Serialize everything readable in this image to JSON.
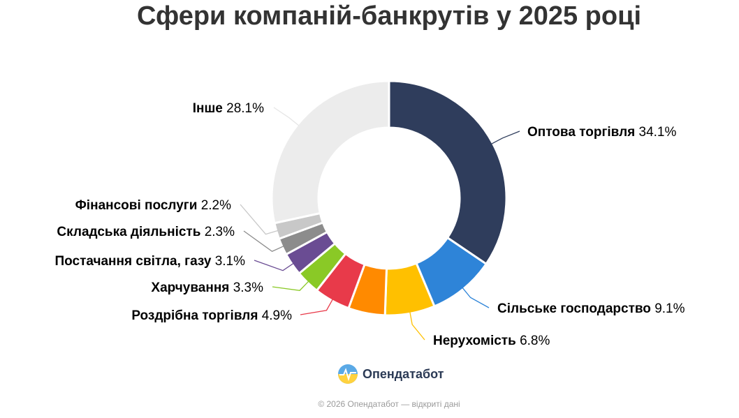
{
  "chart_data": {
    "type": "pie",
    "title": "Сфери компаній-банкрутів у 2025 році",
    "slices": [
      {
        "label": "Оптова торгівля",
        "value": 34.1,
        "value_text": "34.1%",
        "color": "#2f3d5c"
      },
      {
        "label": "Сільське господарство",
        "value": 9.1,
        "value_text": "9.1%",
        "color": "#2e84d8"
      },
      {
        "label": "Нерухомість",
        "value": 6.8,
        "value_text": "6.8%",
        "color": "#ffc000"
      },
      {
        "label": "",
        "value": 5.0,
        "value_text": "",
        "color": "#ff8a00"
      },
      {
        "label": "Роздрібна торгівля",
        "value": 4.9,
        "value_text": "4.9%",
        "color": "#e83a4a"
      },
      {
        "label": "Харчування",
        "value": 3.3,
        "value_text": "3.3%",
        "color": "#8ac926"
      },
      {
        "label": "Постачання світла, газу",
        "value": 3.1,
        "value_text": "3.1%",
        "color": "#6a4c93"
      },
      {
        "label": "Складська діяльність",
        "value": 2.3,
        "value_text": "2.3%",
        "color": "#8c8c8c"
      },
      {
        "label": "Фінансові послуги",
        "value": 2.2,
        "value_text": "2.2%",
        "color": "#c8c8c8"
      },
      {
        "label": "Інше",
        "value": 28.1,
        "value_text": "28.1%",
        "color": "#ececec"
      }
    ]
  },
  "brand": {
    "name": "Опендатабот"
  },
  "footer": {
    "text": "© 2026 Опендатабот — відкриті дані"
  }
}
